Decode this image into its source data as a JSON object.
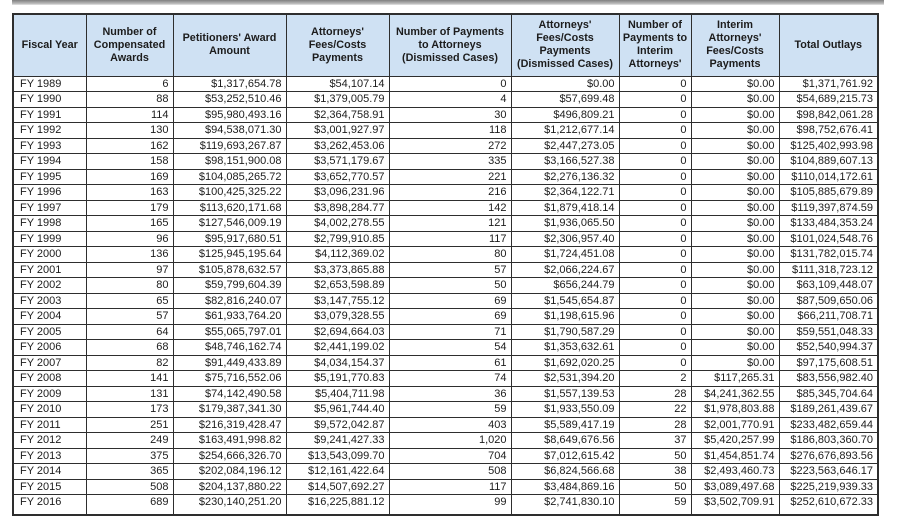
{
  "window": {
    "top_strip": "gray-edge-strip"
  },
  "colors": {
    "header_bg": "#cfe1f3",
    "border": "#2e2e2e",
    "text": "#1c1c1c"
  },
  "table": {
    "columns": [
      "Fiscal Year",
      "Number of Compensated Awards",
      "Petitioners' Award Amount",
      "Attorneys' Fees/Costs Payments",
      "Number of Payments to Attorneys (Dismissed Cases)",
      "Attorneys' Fees/Costs Payments (Dismissed Cases)",
      "Number of Payments to Interim Attorneys'",
      "Interim Attorneys' Fees/Costs Payments",
      "Total Outlays"
    ],
    "column_keys": [
      "cell-fiscal-year",
      "cell-compensated-awards",
      "cell-petitioners-award-amount",
      "cell-attorneys-fees-payments",
      "cell-payments-attorneys-dismissed",
      "cell-attorneys-fees-dismissed",
      "cell-payments-interim-attorneys",
      "cell-interim-attorneys-fees",
      "cell-total-outlays"
    ],
    "rows": [
      [
        "FY 1989",
        "6",
        "$1,317,654.78",
        "$54,107.14",
        "0",
        "$0.00",
        "0",
        "$0.00",
        "$1,371,761.92"
      ],
      [
        "FY 1990",
        "88",
        "$53,252,510.46",
        "$1,379,005.79",
        "4",
        "$57,699.48",
        "0",
        "$0.00",
        "$54,689,215.73"
      ],
      [
        "FY 1991",
        "114",
        "$95,980,493.16",
        "$2,364,758.91",
        "30",
        "$496,809.21",
        "0",
        "$0.00",
        "$98,842,061.28"
      ],
      [
        "FY 1992",
        "130",
        "$94,538,071.30",
        "$3,001,927.97",
        "118",
        "$1,212,677.14",
        "0",
        "$0.00",
        "$98,752,676.41"
      ],
      [
        "FY 1993",
        "162",
        "$119,693,267.87",
        "$3,262,453.06",
        "272",
        "$2,447,273.05",
        "0",
        "$0.00",
        "$125,402,993.98"
      ],
      [
        "FY 1994",
        "158",
        "$98,151,900.08",
        "$3,571,179.67",
        "335",
        "$3,166,527.38",
        "0",
        "$0.00",
        "$104,889,607.13"
      ],
      [
        "FY 1995",
        "169",
        "$104,085,265.72",
        "$3,652,770.57",
        "221",
        "$2,276,136.32",
        "0",
        "$0.00",
        "$110,014,172.61"
      ],
      [
        "FY 1996",
        "163",
        "$100,425,325.22",
        "$3,096,231.96",
        "216",
        "$2,364,122.71",
        "0",
        "$0.00",
        "$105,885,679.89"
      ],
      [
        "FY 1997",
        "179",
        "$113,620,171.68",
        "$3,898,284.77",
        "142",
        "$1,879,418.14",
        "0",
        "$0.00",
        "$119,397,874.59"
      ],
      [
        "FY 1998",
        "165",
        "$127,546,009.19",
        "$4,002,278.55",
        "121",
        "$1,936,065.50",
        "0",
        "$0.00",
        "$133,484,353.24"
      ],
      [
        "FY 1999",
        "96",
        "$95,917,680.51",
        "$2,799,910.85",
        "117",
        "$2,306,957.40",
        "0",
        "$0.00",
        "$101,024,548.76"
      ],
      [
        "FY 2000",
        "136",
        "$125,945,195.64",
        "$4,112,369.02",
        "80",
        "$1,724,451.08",
        "0",
        "$0.00",
        "$131,782,015.74"
      ],
      [
        "FY 2001",
        "97",
        "$105,878,632.57",
        "$3,373,865.88",
        "57",
        "$2,066,224.67",
        "0",
        "$0.00",
        "$111,318,723.12"
      ],
      [
        "FY 2002",
        "80",
        "$59,799,604.39",
        "$2,653,598.89",
        "50",
        "$656,244.79",
        "0",
        "$0.00",
        "$63,109,448.07"
      ],
      [
        "FY 2003",
        "65",
        "$82,816,240.07",
        "$3,147,755.12",
        "69",
        "$1,545,654.87",
        "0",
        "$0.00",
        "$87,509,650.06"
      ],
      [
        "FY 2004",
        "57",
        "$61,933,764.20",
        "$3,079,328.55",
        "69",
        "$1,198,615.96",
        "0",
        "$0.00",
        "$66,211,708.71"
      ],
      [
        "FY 2005",
        "64",
        "$55,065,797.01",
        "$2,694,664.03",
        "71",
        "$1,790,587.29",
        "0",
        "$0.00",
        "$59,551,048.33"
      ],
      [
        "FY 2006",
        "68",
        "$48,746,162.74",
        "$2,441,199.02",
        "54",
        "$1,353,632.61",
        "0",
        "$0.00",
        "$52,540,994.37"
      ],
      [
        "FY 2007",
        "82",
        "$91,449,433.89",
        "$4,034,154.37",
        "61",
        "$1,692,020.25",
        "0",
        "$0.00",
        "$97,175,608.51"
      ],
      [
        "FY 2008",
        "141",
        "$75,716,552.06",
        "$5,191,770.83",
        "74",
        "$2,531,394.20",
        "2",
        "$117,265.31",
        "$83,556,982.40"
      ],
      [
        "FY 2009",
        "131",
        "$74,142,490.58",
        "$5,404,711.98",
        "36",
        "$1,557,139.53",
        "28",
        "$4,241,362.55",
        "$85,345,704.64"
      ],
      [
        "FY 2010",
        "173",
        "$179,387,341.30",
        "$5,961,744.40",
        "59",
        "$1,933,550.09",
        "22",
        "$1,978,803.88",
        "$189,261,439.67"
      ],
      [
        "FY 2011",
        "251",
        "$216,319,428.47",
        "$9,572,042.87",
        "403",
        "$5,589,417.19",
        "28",
        "$2,001,770.91",
        "$233,482,659.44"
      ],
      [
        "FY 2012",
        "249",
        "$163,491,998.82",
        "$9,241,427.33",
        "1,020",
        "$8,649,676.56",
        "37",
        "$5,420,257.99",
        "$186,803,360.70"
      ],
      [
        "FY 2013",
        "375",
        "$254,666,326.70",
        "$13,543,099.70",
        "704",
        "$7,012,615.42",
        "50",
        "$1,454,851.74",
        "$276,676,893.56"
      ],
      [
        "FY 2014",
        "365",
        "$202,084,196.12",
        "$12,161,422.64",
        "508",
        "$6,824,566.68",
        "38",
        "$2,493,460.73",
        "$223,563,646.17"
      ],
      [
        "FY 2015",
        "508",
        "$204,137,880.22",
        "$14,507,692.27",
        "117",
        "$3,484,869.16",
        "50",
        "$3,089,497.68",
        "$225,219,939.33"
      ],
      [
        "FY 2016",
        "689",
        "$230,140,251.20",
        "$16,225,881.12",
        "99",
        "$2,741,830.10",
        "59",
        "$3,502,709.91",
        "$252,610,672.33"
      ]
    ]
  }
}
